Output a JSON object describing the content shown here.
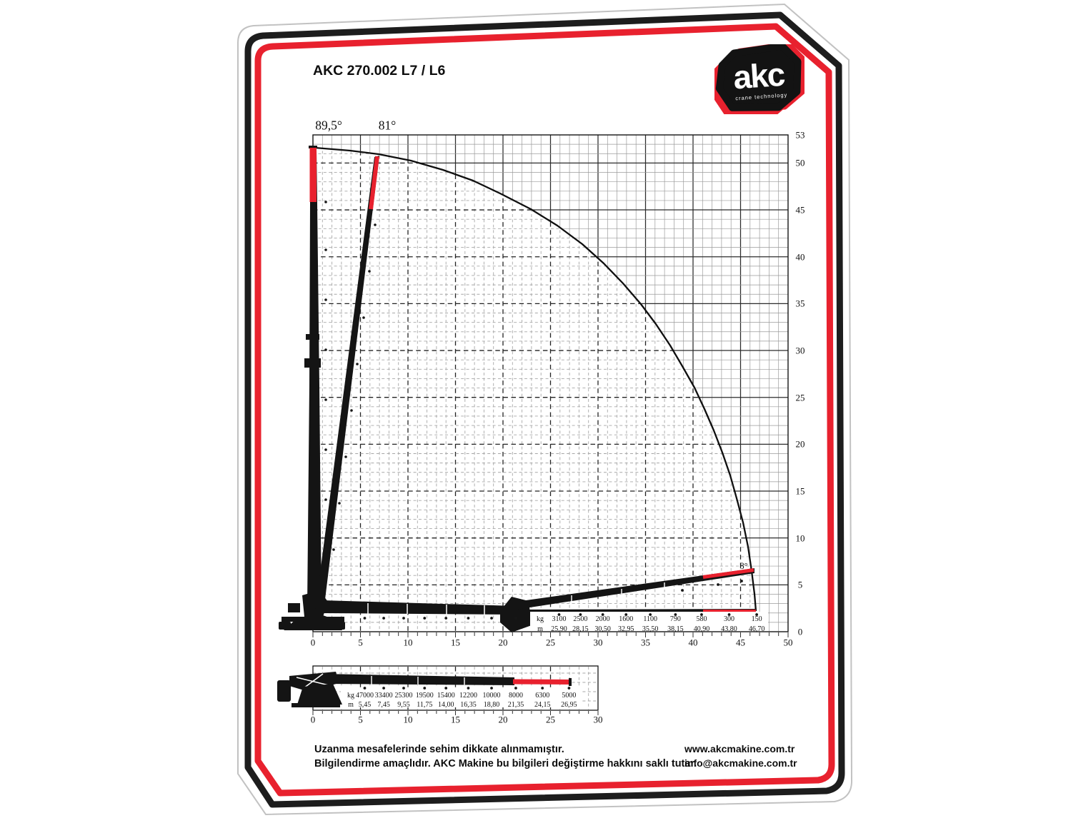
{
  "title": "AKC 270.002 L7 / L6",
  "logo": {
    "brand": "akc",
    "tagline": "crane technology"
  },
  "colors": {
    "accent_red": "#e8212e",
    "ink_black": "#141414",
    "grid_gray": "#a7a7a7"
  },
  "main_chart": {
    "boom_angle_label_1": "89,5°",
    "boom_angle_label_2": "81°",
    "jib_angle_label": "8°",
    "x_axis_ticks": [
      "0",
      "5",
      "10",
      "15",
      "20",
      "25",
      "30",
      "35",
      "40",
      "45",
      "50"
    ],
    "y_axis_ticks": [
      "53",
      "50",
      "45",
      "40",
      "35",
      "30",
      "25",
      "20",
      "15",
      "10",
      "5",
      "0"
    ],
    "load_table": {
      "kg_label": "kg",
      "m_label": "m",
      "kg": [
        "3100",
        "2500",
        "2000",
        "1600",
        "1100",
        "790",
        "580",
        "300",
        "150"
      ],
      "m": [
        "25,90",
        "28,15",
        "30,50",
        "32,95",
        "35,50",
        "38,15",
        "40,90",
        "43,80",
        "46,70"
      ]
    }
  },
  "lower_chart": {
    "x_axis_ticks": [
      "0",
      "5",
      "10",
      "15",
      "20",
      "25",
      "30"
    ],
    "load_table": {
      "kg_label": "kg",
      "m_label": "m",
      "kg": [
        "47000",
        "33400",
        "25300",
        "19500",
        "15400",
        "12200",
        "10000",
        "8000",
        "6300",
        "5000"
      ],
      "m": [
        "5,45",
        "7,45",
        "9,55",
        "11,75",
        "14,00",
        "16,35",
        "18,80",
        "21,35",
        "24,15",
        "26,95"
      ]
    }
  },
  "footer": {
    "line1": "Uzanma mesafelerinde sehim dikkate alınmamıştır.",
    "line2": "Bilgilendirme amaçlıdır. AKC Makine bu bilgileri değiştirme hakkını saklı tutar.",
    "website": "www.akcmakine.com.tr",
    "email": "info@akcmakine.com.tr"
  },
  "chart_data": [
    {
      "type": "table",
      "name": "jib-load-table-upper-chart",
      "boom_angles_deg": [
        89.5,
        81,
        8
      ],
      "columns": [
        "outreach_m",
        "capacity_kg"
      ],
      "outreach_m": [
        25.9,
        28.15,
        30.5,
        32.95,
        35.5,
        38.15,
        40.9,
        43.8,
        46.7
      ],
      "capacity_kg": [
        3100,
        2500,
        2000,
        1600,
        1100,
        790,
        580,
        300,
        150
      ],
      "x_range_m": [
        0,
        50
      ],
      "y_range_m": [
        0,
        53
      ],
      "max_height_m": 51.5
    },
    {
      "type": "table",
      "name": "main-boom-load-table-lower-chart",
      "columns": [
        "outreach_m",
        "capacity_kg"
      ],
      "outreach_m": [
        5.45,
        7.45,
        9.55,
        11.75,
        14.0,
        16.35,
        18.8,
        21.35,
        24.15,
        26.95
      ],
      "capacity_kg": [
        47000,
        33400,
        25300,
        19500,
        15400,
        12200,
        10000,
        8000,
        6300,
        5000
      ],
      "x_range_m": [
        0,
        30
      ]
    }
  ]
}
